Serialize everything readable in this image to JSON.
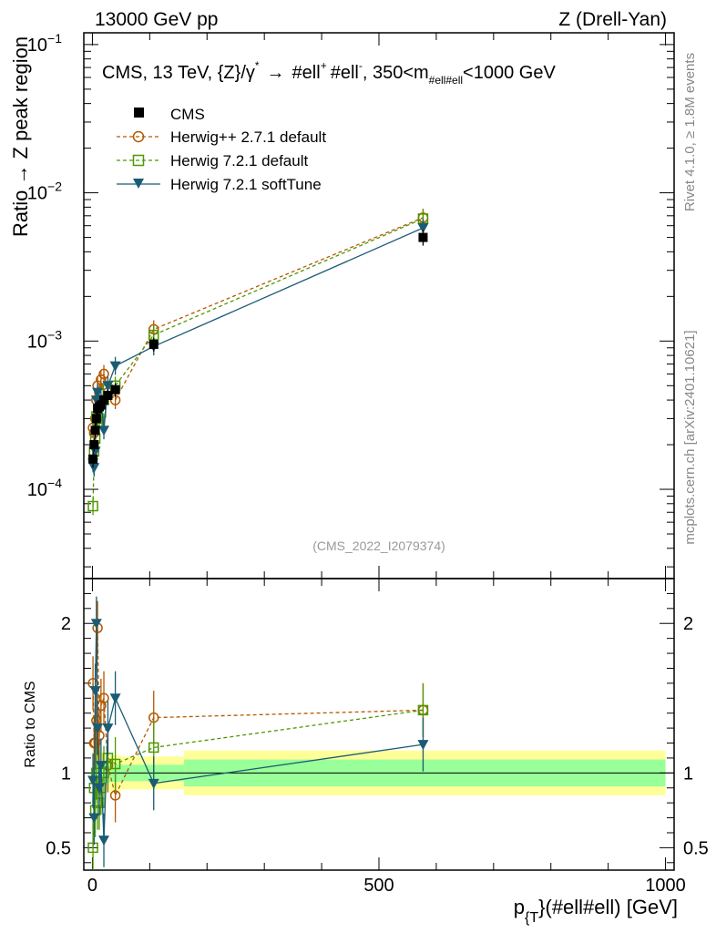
{
  "header": {
    "left": "13000 GeV pp",
    "right": "Z (Drell-Yan)"
  },
  "side_labels": {
    "rivet": "Rivet 4.1.0, ≥ 1.8M events",
    "mcplots": "mcplots.cern.ch [arXiv:2401.10621]"
  },
  "chart_data": {
    "type": "scatter",
    "title": "CMS, 13 TeV, {Z}/γ* → #ell⁺ #ell⁻, 350<m_{#ell#ell}<1000 GeV",
    "title_parts": {
      "main": "CMS, 13 TeV, {Z}/γ",
      "star": "*",
      "arrow": "→",
      "l1": "#ell",
      "plus": "+",
      "l2": "#ell",
      "minus": "-",
      "range": ", 350<m",
      "sub": "#ell#ell",
      "tail": "<1000 GeV"
    },
    "watermark": "(CMS_2022_I2079374)",
    "xlabel": {
      "main": "p",
      "sub": "{T",
      "rest": "}(#ell#ell) [GeV]"
    },
    "ylabel": "Ratio → Z peak region",
    "ratio_ylabel": "Ratio to CMS",
    "xlim": [
      -15,
      1015
    ],
    "ylim": [
      2.5e-05,
      0.12
    ],
    "ratio_ylim": [
      0.35,
      2.3
    ],
    "x_ticks": [
      {
        "value": 0,
        "label": "0"
      },
      {
        "value": 500,
        "label": "500"
      },
      {
        "value": 1000,
        "label": "1000"
      }
    ],
    "y_ticks": [
      {
        "value": 0.0001,
        "base": "10",
        "exp": "−4"
      },
      {
        "value": 0.001,
        "base": "10",
        "exp": "−3"
      },
      {
        "value": 0.01,
        "base": "10",
        "exp": "−2"
      },
      {
        "value": 0.1,
        "base": "10",
        "exp": "−1"
      }
    ],
    "ratio_ticks": [
      {
        "value": 0.5,
        "label": "0.5"
      },
      {
        "value": 1,
        "label": "1"
      },
      {
        "value": 2,
        "label": "2"
      }
    ],
    "legend": [
      {
        "key": "cms",
        "label": "CMS"
      },
      {
        "key": "hw_def",
        "label": "Herwig++ 2.7.1 default"
      },
      {
        "key": "h7_def",
        "label": "Herwig 7.2.1 default"
      },
      {
        "key": "h7_soft",
        "label": "Herwig 7.2.1 softTune"
      }
    ],
    "colors": {
      "cms": "#000000",
      "hw_def": "#b35900",
      "h7_def": "#4d9900",
      "h7_soft": "#1a5c73",
      "band_outer": "#ffff99",
      "band_inner": "#99ff99"
    },
    "x": [
      1,
      3,
      5,
      7,
      9,
      12,
      15,
      20,
      27,
      40,
      107,
      577
    ],
    "cms": {
      "values": [
        0.00016,
        0.0002,
        0.00025,
        0.0003,
        0.00035,
        0.00036,
        0.00037,
        0.0004,
        0.00043,
        0.00047,
        0.00095,
        0.005
      ],
      "errors": [
        2e-05,
        2e-05,
        3e-05,
        3e-05,
        4e-05,
        4e-05,
        4e-05,
        4e-05,
        4e-05,
        5e-05,
        0.0001,
        0.0006
      ]
    },
    "series": [
      {
        "key": "hw_def",
        "name": "Herwig++ 2.7.1 default",
        "values": [
          0.00026,
          0.00024,
          0.0003,
          0.0004,
          0.0005,
          0.00045,
          0.00055,
          0.0006,
          0.00045,
          0.0004,
          0.0012,
          0.0068
        ],
        "ratio": [
          1.6,
          1.2,
          1.2,
          1.35,
          1.97,
          1.25,
          1.45,
          1.5,
          1.05,
          0.85,
          1.37,
          1.42
        ]
      },
      {
        "key": "h7_def",
        "name": "Herwig 7.2.1 default",
        "values": [
          7.7e-05,
          0.00018,
          0.00022,
          0.00031,
          0.00028,
          0.0003,
          0.00033,
          0.0004,
          0.00047,
          0.0005,
          0.0011,
          0.0067
        ],
        "ratio": [
          0.5,
          0.9,
          0.75,
          1.0,
          0.8,
          0.8,
          0.9,
          1.0,
          1.1,
          1.06,
          1.17,
          1.42
        ]
      },
      {
        "key": "h7_soft",
        "name": "Herwig 7.2.1 softTune",
        "values": [
          0.00015,
          0.00014,
          0.00018,
          0.0004,
          0.00045,
          0.00035,
          0.0004,
          0.00025,
          0.0005,
          0.00068,
          0.00092,
          0.0058
        ],
        "ratio": [
          0.95,
          0.7,
          1.55,
          2.0,
          1.3,
          0.9,
          1.05,
          0.55,
          1.3,
          1.5,
          0.93,
          1.19
        ]
      }
    ],
    "band_edges": [
      0,
      10,
      20,
      30,
      50,
      160,
      1000
    ],
    "band_outer": [
      0.14,
      0.14,
      0.13,
      0.12,
      0.11,
      0.15
    ],
    "band_inner": [
      0.07,
      0.07,
      0.065,
      0.06,
      0.055,
      0.09
    ]
  }
}
